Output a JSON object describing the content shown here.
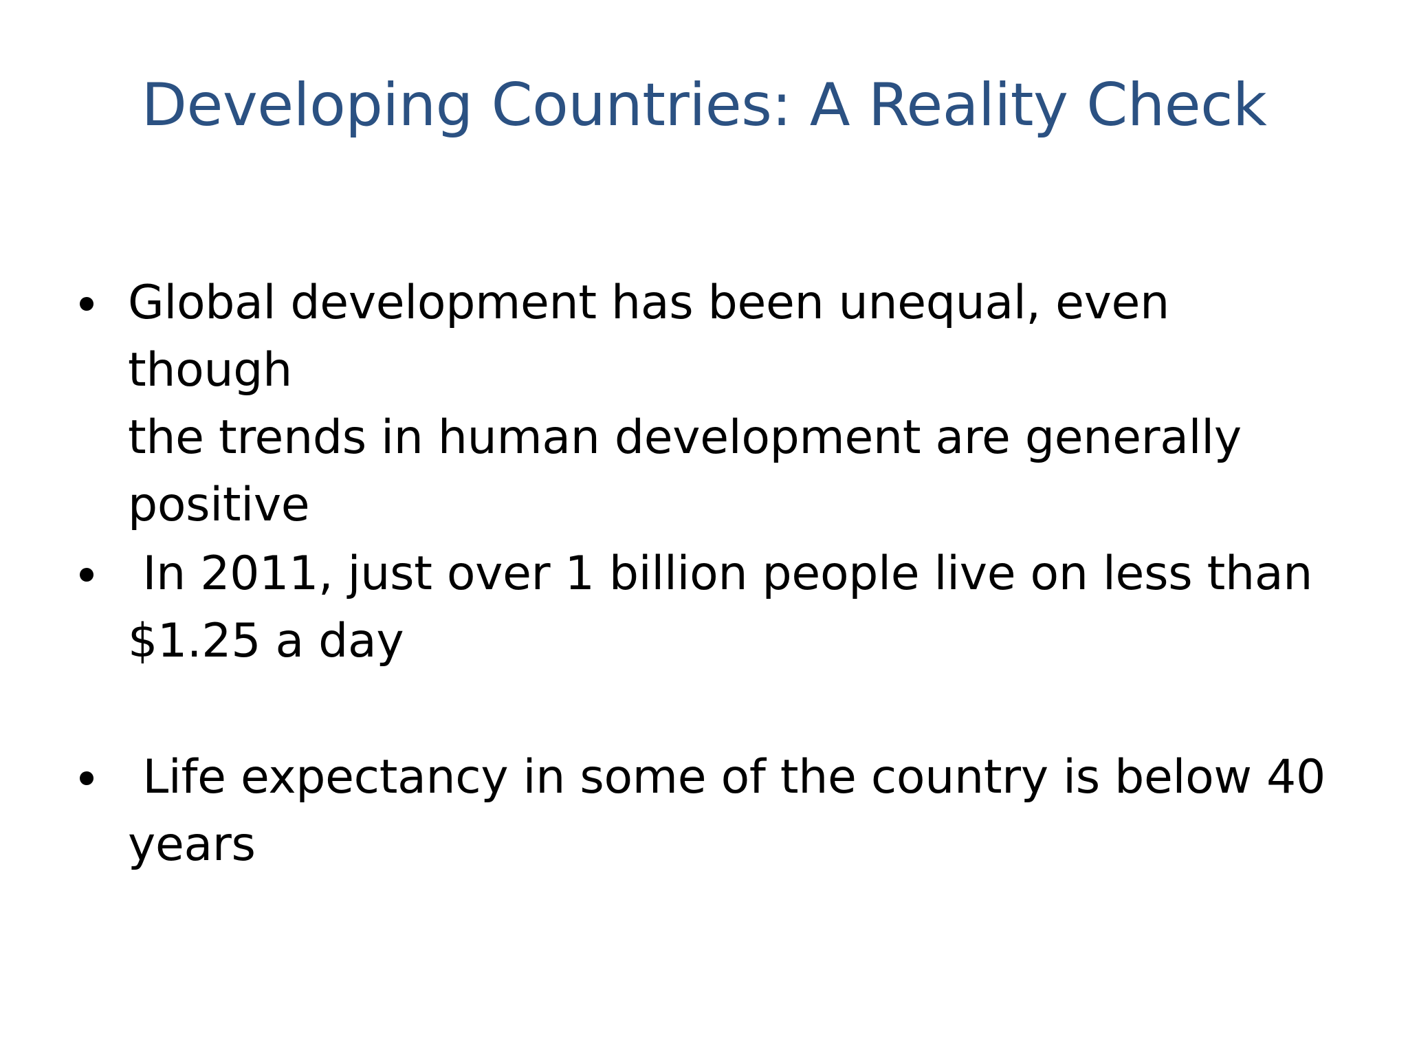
{
  "slide": {
    "title": "Developing Countries: A Reality Check",
    "title_color": "#2b5182",
    "text_color": "#000000",
    "background": "#ffffff",
    "bullets": [
      {
        "text": "Global development has been unequal, even though\nthe trends in human development are generally\npositive"
      },
      {
        "text": " In 2011, just over 1 billion people live on less than\n$1.25 a day"
      },
      {
        "text": " Life expectancy in some of the country is below 40\nyears"
      }
    ]
  }
}
